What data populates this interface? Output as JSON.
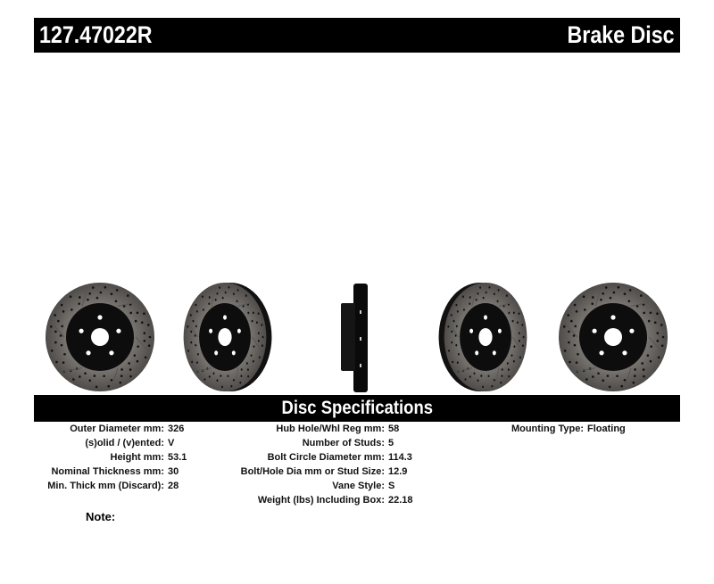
{
  "header": {
    "part_number": "127.47022R",
    "product_type": "Brake Disc"
  },
  "section_title": "Disc Specifications",
  "specs": {
    "col1": [
      {
        "label": "Outer Diameter mm:",
        "value": "326"
      },
      {
        "label": "(s)olid / (v)ented:",
        "value": "V"
      },
      {
        "label": "Height mm:",
        "value": "53.1"
      },
      {
        "label": "Nominal Thickness mm:",
        "value": "30"
      },
      {
        "label": "Min. Thick mm (Discard):",
        "value": "28"
      }
    ],
    "col2": [
      {
        "label": "Hub Hole/Whl Reg mm:",
        "value": "58"
      },
      {
        "label": "Number of Studs:",
        "value": "5"
      },
      {
        "label": "Bolt Circle Diameter mm:",
        "value": "114.3"
      },
      {
        "label": "Bolt/Hole Dia mm or Stud Size:",
        "value": "12.9"
      },
      {
        "label": "Vane Style:",
        "value": "S"
      },
      {
        "label": "Weight (lbs) Including Box:",
        "value": "22.18"
      }
    ],
    "col3": [
      {
        "label": "Mounting Type:",
        "value": "Floating"
      }
    ]
  },
  "note_label": "Note:",
  "colors": {
    "bar": "#000000",
    "disc_face": "#6e6a66",
    "hat": "#0d0d0d"
  }
}
